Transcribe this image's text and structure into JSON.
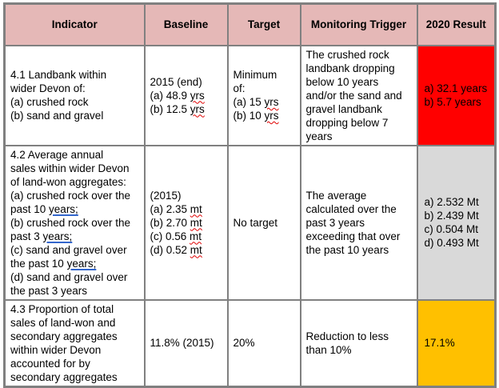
{
  "colors": {
    "header_bg": "#e5b8b7",
    "result_red": "#ff0000",
    "result_grey": "#d9d9d9",
    "result_amber": "#ffc000",
    "border": "#808080",
    "spellcheck_red": "#e00000",
    "grammar_blue": "#3366cc"
  },
  "columns": [
    {
      "label": "Indicator"
    },
    {
      "label": "Baseline"
    },
    {
      "label": "Target"
    },
    {
      "label": "Monitoring Trigger"
    },
    {
      "label": "2020 Result"
    }
  ],
  "rows": [
    {
      "indicator": {
        "lines": [
          [
            {
              "t": "4.1 Landbank within"
            }
          ],
          [
            {
              "t": "wider Devon of:"
            }
          ],
          [
            {
              "t": "(a) crushed rock"
            }
          ],
          [
            {
              "t": "(b) sand and gravel"
            }
          ]
        ]
      },
      "baseline": {
        "lines": [
          [
            {
              "t": "2015 (end)"
            }
          ],
          [
            {
              "t": "(a) 48.9 "
            },
            {
              "t": "yrs",
              "u": "red"
            }
          ],
          [
            {
              "t": "(b) 12.5 "
            },
            {
              "t": "yrs",
              "u": "red"
            }
          ]
        ]
      },
      "target": {
        "lines": [
          [
            {
              "t": "Minimum"
            }
          ],
          [
            {
              "t": "of:"
            }
          ],
          [
            {
              "t": "(a) 15 "
            },
            {
              "t": "yrs",
              "u": "red"
            }
          ],
          [
            {
              "t": "(b) 10 "
            },
            {
              "t": "yrs",
              "u": "red"
            }
          ]
        ]
      },
      "trigger": {
        "lines": [
          [
            {
              "t": "The crushed rock"
            }
          ],
          [
            {
              "t": "landbank dropping"
            }
          ],
          [
            {
              "t": "below 10 years"
            }
          ],
          [
            {
              "t": "and/or the sand and"
            }
          ],
          [
            {
              "t": "gravel landbank"
            }
          ],
          [
            {
              "t": "dropping below 7"
            }
          ],
          [
            {
              "t": "years"
            }
          ]
        ]
      },
      "result": {
        "bg": "#ff0000",
        "lines": [
          [
            {
              "t": "a) 32.1 years"
            }
          ],
          [
            {
              "t": "b) 5.7 years"
            }
          ]
        ]
      }
    },
    {
      "indicator": {
        "lines": [
          [
            {
              "t": "4.2 Average annual"
            }
          ],
          [
            {
              "t": "sales within wider Devon"
            }
          ],
          [
            {
              "t": "of land-won aggregates:"
            }
          ],
          [
            {
              "t": "(a) crushed rock over the"
            }
          ],
          [
            {
              "t": "past 10 "
            },
            {
              "t": "years;",
              "u": "blue"
            }
          ],
          [
            {
              "t": "(b) crushed rock over the"
            }
          ],
          [
            {
              "t": "past 3 "
            },
            {
              "t": "years;",
              "u": "blue"
            }
          ],
          [
            {
              "t": "(c) sand and gravel over"
            }
          ],
          [
            {
              "t": "the past 10 "
            },
            {
              "t": "years;",
              "u": "blue"
            }
          ],
          [
            {
              "t": "(d) sand and gravel over"
            }
          ],
          [
            {
              "t": "the past 3 years"
            }
          ]
        ]
      },
      "baseline": {
        "lines": [
          [
            {
              "t": "(2015)"
            }
          ],
          [
            {
              "t": "(a) 2.35 "
            },
            {
              "t": "mt",
              "u": "red"
            }
          ],
          [
            {
              "t": "(b) 2.70 "
            },
            {
              "t": "mt",
              "u": "red"
            }
          ],
          [
            {
              "t": "(c) 0.56 "
            },
            {
              "t": "mt",
              "u": "red"
            }
          ],
          [
            {
              "t": "(d) 0.52 "
            },
            {
              "t": "mt",
              "u": "red"
            }
          ]
        ]
      },
      "target": {
        "lines": [
          [
            {
              "t": "No target"
            }
          ]
        ]
      },
      "trigger": {
        "lines": [
          [
            {
              "t": "The average"
            }
          ],
          [
            {
              "t": "calculated over the"
            }
          ],
          [
            {
              "t": "past 3 years"
            }
          ],
          [
            {
              "t": "exceeding that over"
            }
          ],
          [
            {
              "t": "the past 10 years"
            }
          ]
        ]
      },
      "result": {
        "bg": "#d9d9d9",
        "lines": [
          [
            {
              "t": "a) 2.532 Mt"
            }
          ],
          [
            {
              "t": "b) 2.439 Mt"
            }
          ],
          [
            {
              "t": "c) 0.504 Mt"
            }
          ],
          [
            {
              "t": "d) 0.493 Mt"
            }
          ]
        ]
      }
    },
    {
      "indicator": {
        "lines": [
          [
            {
              "t": "4.3 Proportion of total"
            }
          ],
          [
            {
              "t": "sales of land-won and"
            }
          ],
          [
            {
              "t": "secondary aggregates"
            }
          ],
          [
            {
              "t": "within wider Devon"
            }
          ],
          [
            {
              "t": "accounted for by"
            }
          ],
          [
            {
              "t": "secondary aggregates"
            }
          ]
        ]
      },
      "baseline": {
        "lines": [
          [
            {
              "t": "11.8% (2015)"
            }
          ]
        ]
      },
      "target": {
        "lines": [
          [
            {
              "t": "20%"
            }
          ]
        ]
      },
      "trigger": {
        "lines": [
          [
            {
              "t": "Reduction to less"
            }
          ],
          [
            {
              "t": "than 10%"
            }
          ]
        ]
      },
      "result": {
        "bg": "#ffc000",
        "lines": [
          [
            {
              "t": "17.1%"
            }
          ]
        ]
      }
    }
  ]
}
